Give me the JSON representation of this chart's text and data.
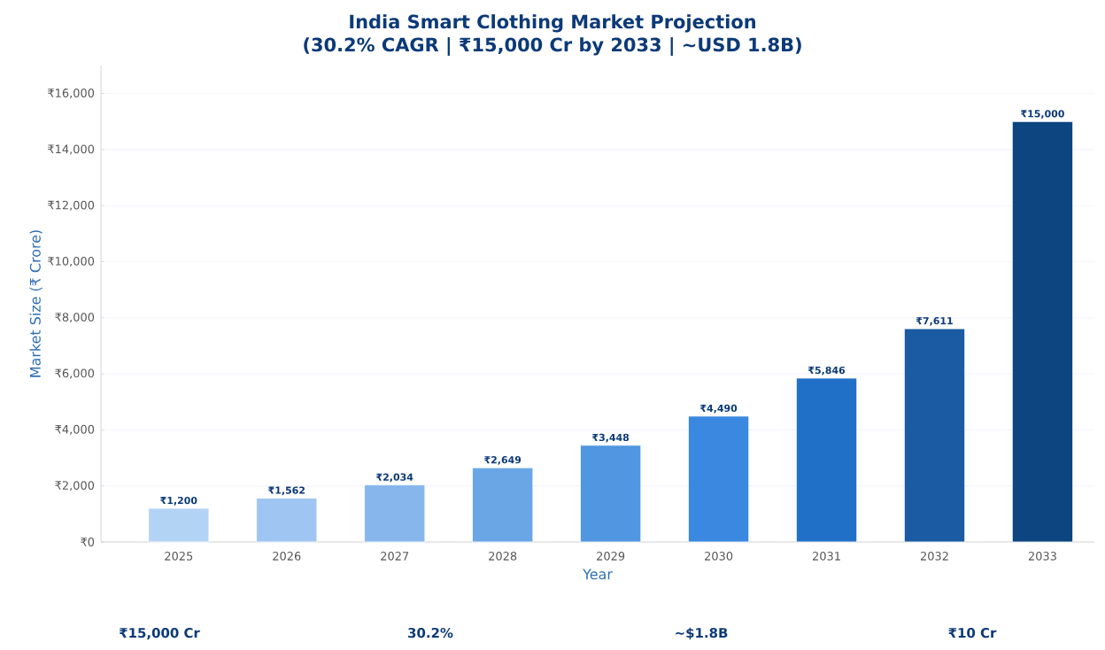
{
  "chart_data": {
    "type": "bar",
    "title": "India Smart Clothing Market Projection",
    "subtitle": "(30.2% CAGR | ₹15,000 Cr by 2033 | ~USD 1.8B)",
    "xlabel": "Year",
    "ylabel": "Market Size (₹ Crore)",
    "categories": [
      "2025",
      "2026",
      "2027",
      "2028",
      "2029",
      "2030",
      "2031",
      "2032",
      "2033"
    ],
    "values": [
      1200,
      1562,
      2034,
      2649,
      3448,
      4490,
      5846,
      7611,
      15000
    ],
    "value_labels": [
      "₹1,200",
      "₹1,562",
      "₹2,034",
      "₹2,649",
      "₹3,448",
      "₹4,490",
      "₹5,846",
      "₹7,611",
      "₹15,000"
    ],
    "colors": [
      "#b3d3f5",
      "#9fc6f2",
      "#86b6ec",
      "#6aa6e6",
      "#5096e0",
      "#3a88e0",
      "#2170c8",
      "#1a5ba3",
      "#0c4580"
    ],
    "ylim": [
      0,
      17000
    ],
    "yticks": [
      {
        "value": 0,
        "label": "₹0"
      },
      {
        "value": 2000,
        "label": "₹2,000"
      },
      {
        "value": 4000,
        "label": "₹4,000"
      },
      {
        "value": 6000,
        "label": "₹6,000"
      },
      {
        "value": 8000,
        "label": "₹8,000"
      },
      {
        "value": 10000,
        "label": "₹10,000"
      },
      {
        "value": 12000,
        "label": "₹12,000"
      },
      {
        "value": 14000,
        "label": "₹14,000"
      },
      {
        "value": 16000,
        "label": "₹16,000"
      }
    ],
    "grid": "y",
    "annotations": [
      "₹15,000 Cr",
      "30.2%",
      "~$1.8B",
      "₹10 Cr"
    ]
  }
}
